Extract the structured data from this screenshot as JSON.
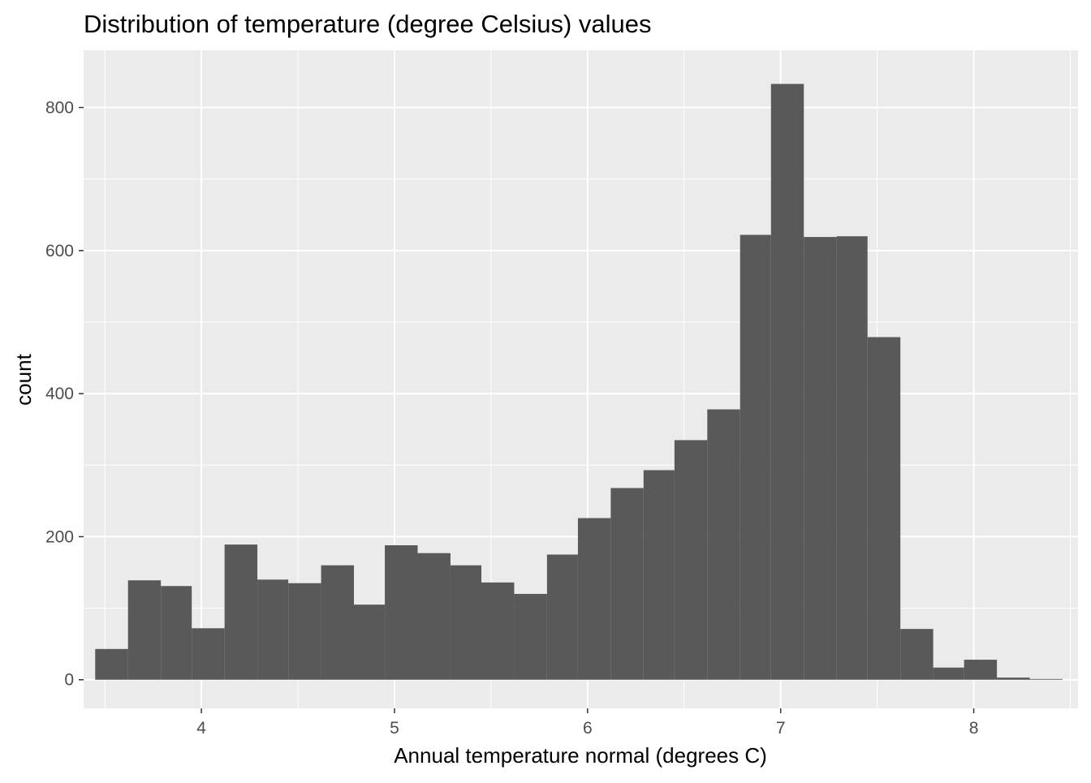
{
  "chart_data": {
    "type": "bar",
    "title": "Distribution of temperature (degree Celsius) values",
    "xlabel": "Annual temperature normal (degrees C)",
    "ylabel": "count",
    "xlim": [
      3.39,
      8.54
    ],
    "ylim": [
      -40,
      880
    ],
    "x_ticks": [
      4,
      5,
      6,
      7,
      8
    ],
    "x_tick_labels": [
      "4",
      "5",
      "6",
      "7",
      "8"
    ],
    "y_ticks": [
      0,
      200,
      400,
      600,
      800
    ],
    "y_tick_labels": [
      "0",
      "200",
      "400",
      "600",
      "800"
    ],
    "grid": true,
    "colors": {
      "bar": "#595959",
      "panel": "#ebebeb",
      "grid": "#ffffff"
    },
    "bins": [
      {
        "x_min": 3.45,
        "x_max": 3.62,
        "count": 43
      },
      {
        "x_min": 3.62,
        "x_max": 3.79,
        "count": 139
      },
      {
        "x_min": 3.79,
        "x_max": 3.95,
        "count": 131
      },
      {
        "x_min": 3.95,
        "x_max": 4.12,
        "count": 72
      },
      {
        "x_min": 4.12,
        "x_max": 4.29,
        "count": 189
      },
      {
        "x_min": 4.29,
        "x_max": 4.45,
        "count": 140
      },
      {
        "x_min": 4.45,
        "x_max": 4.62,
        "count": 135
      },
      {
        "x_min": 4.62,
        "x_max": 4.79,
        "count": 160
      },
      {
        "x_min": 4.79,
        "x_max": 4.95,
        "count": 105
      },
      {
        "x_min": 4.95,
        "x_max": 5.12,
        "count": 188
      },
      {
        "x_min": 5.12,
        "x_max": 5.29,
        "count": 177
      },
      {
        "x_min": 5.29,
        "x_max": 5.45,
        "count": 160
      },
      {
        "x_min": 5.45,
        "x_max": 5.62,
        "count": 136
      },
      {
        "x_min": 5.62,
        "x_max": 5.79,
        "count": 120
      },
      {
        "x_min": 5.79,
        "x_max": 5.95,
        "count": 175
      },
      {
        "x_min": 5.95,
        "x_max": 6.12,
        "count": 226
      },
      {
        "x_min": 6.12,
        "x_max": 6.29,
        "count": 268
      },
      {
        "x_min": 6.29,
        "x_max": 6.45,
        "count": 293
      },
      {
        "x_min": 6.45,
        "x_max": 6.62,
        "count": 335
      },
      {
        "x_min": 6.62,
        "x_max": 6.79,
        "count": 378
      },
      {
        "x_min": 6.79,
        "x_max": 6.95,
        "count": 622
      },
      {
        "x_min": 6.95,
        "x_max": 7.12,
        "count": 833
      },
      {
        "x_min": 7.12,
        "x_max": 7.29,
        "count": 619
      },
      {
        "x_min": 7.29,
        "x_max": 7.45,
        "count": 620
      },
      {
        "x_min": 7.45,
        "x_max": 7.62,
        "count": 479
      },
      {
        "x_min": 7.62,
        "x_max": 7.79,
        "count": 71
      },
      {
        "x_min": 7.79,
        "x_max": 7.95,
        "count": 17
      },
      {
        "x_min": 7.95,
        "x_max": 8.12,
        "count": 28
      },
      {
        "x_min": 8.12,
        "x_max": 8.29,
        "count": 3
      },
      {
        "x_min": 8.29,
        "x_max": 8.46,
        "count": 1
      }
    ]
  }
}
